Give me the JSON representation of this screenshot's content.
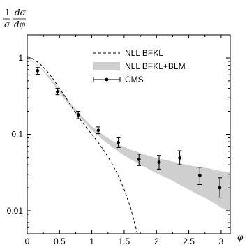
{
  "chart_data": {
    "type": "line",
    "ylabel": {
      "num_left": "1",
      "num_right": "dσ",
      "den_left": "σ",
      "den_right": "dφ"
    },
    "xlabel": "φ",
    "xlim": [
      0,
      3.14159
    ],
    "ylim": [
      0.005,
      2.0
    ],
    "yscale": "log",
    "x_ticks": [
      0,
      0.5,
      1,
      1.5,
      2,
      2.5,
      3
    ],
    "x_tick_labels": [
      "0",
      "0.5",
      "1",
      "1.5",
      "2",
      "2.5",
      "3"
    ],
    "y_ticks": [
      1,
      0.1,
      0.01
    ],
    "y_tick_labels": [
      "1",
      "0.1",
      "0.01"
    ],
    "legend_position": "top-right",
    "series": [
      {
        "name": "NLL BFKL",
        "style": "dashed",
        "x": [
          0.0,
          0.1,
          0.2,
          0.3,
          0.4,
          0.5,
          0.6,
          0.7,
          0.8,
          0.9,
          1.0,
          1.1,
          1.2,
          1.3,
          1.4,
          1.5,
          1.6,
          1.65,
          1.7,
          1.73
        ],
        "y": [
          1.05,
          0.96,
          0.83,
          0.68,
          0.53,
          0.4,
          0.3,
          0.22,
          0.165,
          0.128,
          0.1,
          0.078,
          0.059,
          0.043,
          0.03,
          0.019,
          0.011,
          0.0075,
          0.0052,
          0.0041
        ]
      },
      {
        "name": "NLL BFKL+BLM",
        "style": "band",
        "x": [
          0.0,
          0.2,
          0.4,
          0.6,
          0.8,
          1.0,
          1.2,
          1.4,
          1.6,
          1.8,
          2.0,
          2.2,
          2.4,
          2.6,
          2.8,
          3.0,
          3.14
        ],
        "upper": [
          1.0,
          0.77,
          0.5,
          0.3,
          0.19,
          0.127,
          0.095,
          0.075,
          0.063,
          0.055,
          0.049,
          0.045,
          0.041,
          0.038,
          0.036,
          0.033,
          0.032
        ],
        "lower": [
          0.98,
          0.75,
          0.46,
          0.27,
          0.17,
          0.113,
          0.081,
          0.06,
          0.047,
          0.038,
          0.031,
          0.026,
          0.021,
          0.017,
          0.014,
          0.011,
          0.0095
        ]
      },
      {
        "name": "CMS",
        "style": "points-errorbars",
        "x": [
          0.16,
          0.47,
          0.79,
          1.1,
          1.41,
          1.73,
          2.04,
          2.36,
          2.67,
          2.98
        ],
        "y": [
          0.68,
          0.36,
          0.18,
          0.113,
          0.078,
          0.047,
          0.043,
          0.049,
          0.029,
          0.02
        ],
        "err_low": [
          0.61,
          0.33,
          0.16,
          0.102,
          0.067,
          0.039,
          0.035,
          0.04,
          0.022,
          0.015
        ],
        "err_high": [
          0.75,
          0.4,
          0.2,
          0.125,
          0.09,
          0.055,
          0.053,
          0.061,
          0.037,
          0.027
        ]
      }
    ]
  }
}
